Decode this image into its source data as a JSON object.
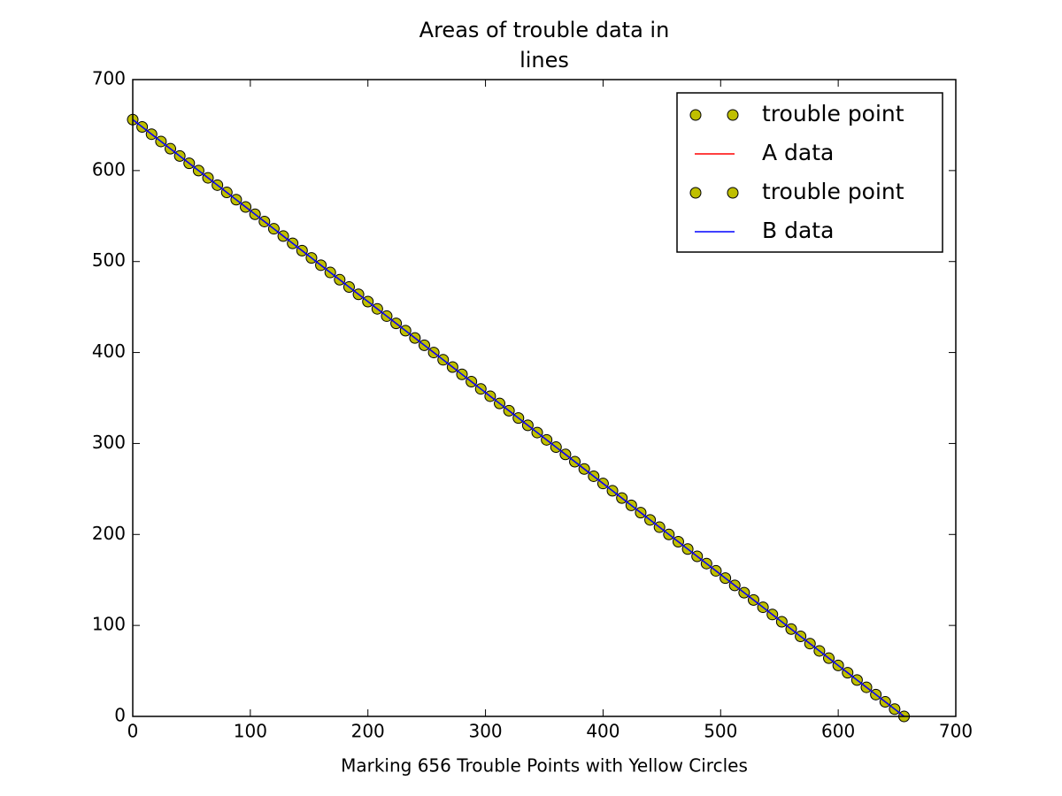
{
  "chart_data": {
    "type": "scatter",
    "title": [
      "Areas of trouble data in",
      "lines"
    ],
    "xlabel": "Marking 656 Trouble Points with Yellow Circles",
    "xlim": [
      0,
      700
    ],
    "ylim": [
      0,
      700
    ],
    "xticks": [
      0,
      100,
      200,
      300,
      400,
      500,
      600,
      700
    ],
    "yticks": [
      0,
      100,
      200,
      300,
      400,
      500,
      600,
      700
    ],
    "legend": "upper right",
    "series": [
      {
        "name": "trouble point",
        "type": "scatter",
        "color": "#bfbf00",
        "x": [
          0,
          16,
          32,
          48,
          64,
          80,
          96,
          112,
          128,
          144,
          160,
          176,
          192,
          208,
          224,
          240,
          256,
          272,
          288,
          304,
          320,
          336,
          352,
          368,
          384,
          400,
          416,
          432,
          448,
          464,
          480,
          496,
          512,
          528,
          544,
          560,
          576,
          592,
          608,
          624,
          640,
          656
        ],
        "values": [
          656,
          640,
          624,
          608,
          592,
          576,
          560,
          544,
          528,
          512,
          496,
          480,
          464,
          448,
          432,
          416,
          400,
          384,
          368,
          352,
          336,
          320,
          304,
          288,
          272,
          256,
          240,
          224,
          208,
          192,
          176,
          160,
          144,
          128,
          112,
          96,
          80,
          64,
          48,
          32,
          16,
          0
        ]
      },
      {
        "name": "A data",
        "type": "line",
        "color": "#ff0000",
        "x": [
          0,
          656
        ],
        "values": [
          656,
          0
        ]
      },
      {
        "name": "trouble point",
        "type": "scatter",
        "color": "#bfbf00",
        "x": [
          8,
          24,
          40,
          56,
          72,
          88,
          104,
          120,
          136,
          152,
          168,
          184,
          200,
          216,
          232,
          248,
          264,
          280,
          296,
          312,
          328,
          344,
          360,
          376,
          392,
          408,
          424,
          440,
          456,
          472,
          488,
          504,
          520,
          536,
          552,
          568,
          584,
          600,
          616,
          632,
          648
        ],
        "values": [
          648,
          632,
          616,
          600,
          584,
          568,
          552,
          536,
          520,
          504,
          488,
          472,
          456,
          440,
          424,
          408,
          392,
          376,
          360,
          344,
          328,
          312,
          296,
          280,
          264,
          248,
          232,
          216,
          200,
          184,
          168,
          152,
          136,
          120,
          104,
          88,
          72,
          56,
          40,
          24,
          8
        ]
      },
      {
        "name": "B data",
        "type": "line",
        "color": "#0000ff",
        "x": [
          0,
          656
        ],
        "values": [
          656,
          0
        ]
      }
    ]
  }
}
